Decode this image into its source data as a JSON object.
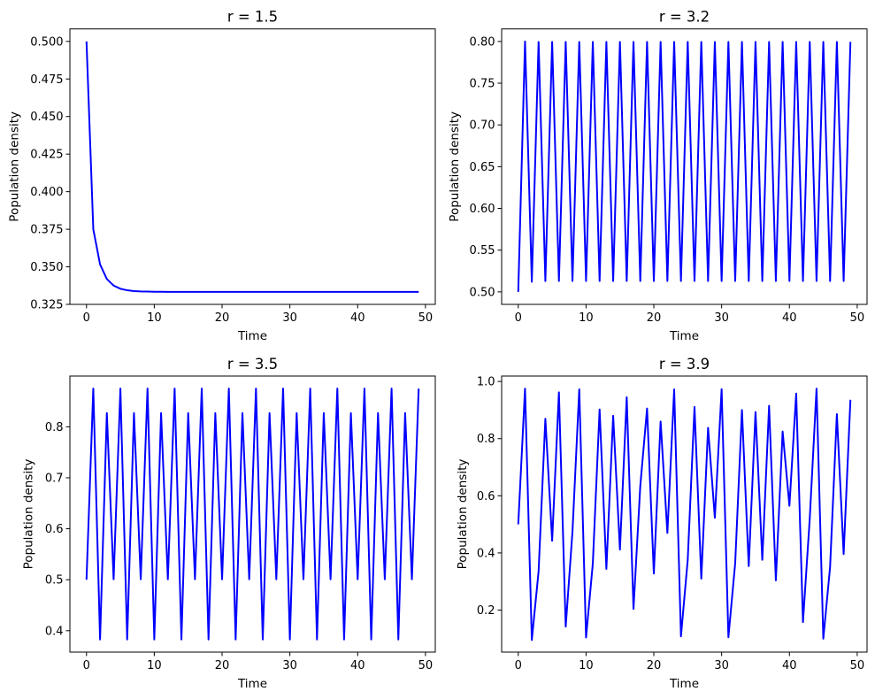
{
  "chart_data": [
    {
      "type": "line",
      "title": "r = 1.5",
      "xlabel": "Time",
      "ylabel": "Population density",
      "xlim": [
        -2.45,
        51.45
      ],
      "ylim": [
        0.325,
        0.5083
      ],
      "xticks": [
        0,
        10,
        20,
        30,
        40,
        50
      ],
      "xtick_labels": [
        "0",
        "10",
        "20",
        "30",
        "40",
        "50"
      ],
      "yticks": [
        0.325,
        0.35,
        0.375,
        0.4,
        0.425,
        0.45,
        0.475,
        0.5
      ],
      "ytick_labels": [
        "0.325",
        "0.350",
        "0.375",
        "0.400",
        "0.425",
        "0.450",
        "0.475",
        "0.500"
      ],
      "color": "#0000ff",
      "x_start": 0,
      "values": [
        0.5,
        0.375,
        0.3516,
        0.3419,
        0.3375,
        0.3354,
        0.3344,
        0.3338,
        0.3336,
        0.3335,
        0.3334,
        0.3334,
        0.3333,
        0.3333,
        0.3333,
        0.3333,
        0.3333,
        0.3333,
        0.3333,
        0.3333,
        0.3333,
        0.3333,
        0.3333,
        0.3333,
        0.3333,
        0.3333,
        0.3333,
        0.3333,
        0.3333,
        0.3333,
        0.3333,
        0.3333,
        0.3333,
        0.3333,
        0.3333,
        0.3333,
        0.3333,
        0.3333,
        0.3333,
        0.3333,
        0.3333,
        0.3333,
        0.3333,
        0.3333,
        0.3333,
        0.3333,
        0.3333,
        0.3333,
        0.3333,
        0.3333
      ]
    },
    {
      "type": "line",
      "title": "r = 3.2",
      "xlabel": "Time",
      "ylabel": "Population density",
      "xlim": [
        -2.45,
        51.45
      ],
      "ylim": [
        0.485,
        0.815
      ],
      "xticks": [
        0,
        10,
        20,
        30,
        40,
        50
      ],
      "xtick_labels": [
        "0",
        "10",
        "20",
        "30",
        "40",
        "50"
      ],
      "yticks": [
        0.5,
        0.55,
        0.6,
        0.65,
        0.7,
        0.75,
        0.8
      ],
      "ytick_labels": [
        "0.50",
        "0.55",
        "0.60",
        "0.65",
        "0.70",
        "0.75",
        "0.80"
      ],
      "color": "#0000ff",
      "x_start": 0,
      "values": [
        0.5,
        0.8,
        0.512,
        0.7995,
        0.5129,
        0.7995,
        0.513,
        0.7995,
        0.513,
        0.7995,
        0.513,
        0.7995,
        0.513,
        0.7995,
        0.513,
        0.7995,
        0.513,
        0.7995,
        0.513,
        0.7995,
        0.513,
        0.7995,
        0.513,
        0.7995,
        0.513,
        0.7995,
        0.513,
        0.7995,
        0.513,
        0.7995,
        0.513,
        0.7995,
        0.513,
        0.7995,
        0.513,
        0.7995,
        0.513,
        0.7995,
        0.513,
        0.7995,
        0.513,
        0.7995,
        0.513,
        0.7995,
        0.513,
        0.7995,
        0.513,
        0.7995,
        0.513,
        0.7995
      ]
    },
    {
      "type": "line",
      "title": "r = 3.5",
      "xlabel": "Time",
      "ylabel": "Population density",
      "xlim": [
        -2.45,
        51.45
      ],
      "ylim": [
        0.358,
        0.8996
      ],
      "xticks": [
        0,
        10,
        20,
        30,
        40,
        50
      ],
      "xtick_labels": [
        "0",
        "10",
        "20",
        "30",
        "40",
        "50"
      ],
      "yticks": [
        0.4,
        0.5,
        0.6,
        0.7,
        0.8
      ],
      "ytick_labels": [
        "0.4",
        "0.5",
        "0.6",
        "0.7",
        "0.8"
      ],
      "color": "#0000ff",
      "x_start": 0,
      "values": [
        0.5,
        0.875,
        0.3828,
        0.8269,
        0.5009,
        0.875,
        0.3828,
        0.8269,
        0.5009,
        0.875,
        0.3828,
        0.8269,
        0.5009,
        0.875,
        0.3828,
        0.8269,
        0.5009,
        0.875,
        0.3828,
        0.8269,
        0.5009,
        0.875,
        0.3828,
        0.8269,
        0.5009,
        0.875,
        0.3828,
        0.8269,
        0.5009,
        0.875,
        0.3828,
        0.8269,
        0.5009,
        0.875,
        0.3828,
        0.8269,
        0.5009,
        0.875,
        0.3828,
        0.8269,
        0.5009,
        0.875,
        0.3828,
        0.8269,
        0.5009,
        0.875,
        0.3828,
        0.8269,
        0.5009,
        0.875
      ]
    },
    {
      "type": "line",
      "title": "r = 3.9",
      "xlabel": "Time",
      "ylabel": "Population density",
      "xlim": [
        -2.45,
        51.45
      ],
      "ylim": [
        0.053,
        1.019
      ],
      "xticks": [
        0,
        10,
        20,
        30,
        40,
        50
      ],
      "xtick_labels": [
        "0",
        "10",
        "20",
        "30",
        "40",
        "50"
      ],
      "yticks": [
        0.2,
        0.4,
        0.6,
        0.8,
        1.0
      ],
      "ytick_labels": [
        "0.2",
        "0.4",
        "0.6",
        "0.8",
        "1.0"
      ],
      "color": "#0000ff",
      "x_start": 0,
      "values": [
        0.5,
        0.975,
        0.0951,
        0.3355,
        0.8695,
        0.4426,
        0.9622,
        0.142,
        0.4751,
        0.9726,
        0.104,
        0.3634,
        0.9022,
        0.344,
        0.88,
        0.4117,
        0.9446,
        0.2041,
        0.6336,
        0.9054,
        0.328,
        0.86,
        0.47,
        0.972,
        0.108,
        0.3757,
        0.911,
        0.31,
        0.838,
        0.523,
        0.973,
        0.105,
        0.364,
        0.9,
        0.354,
        0.893,
        0.376,
        0.915,
        0.304,
        0.825,
        0.565,
        0.958,
        0.158,
        0.52,
        0.975,
        0.1,
        0.351,
        0.886,
        0.396,
        0.936
      ]
    }
  ]
}
